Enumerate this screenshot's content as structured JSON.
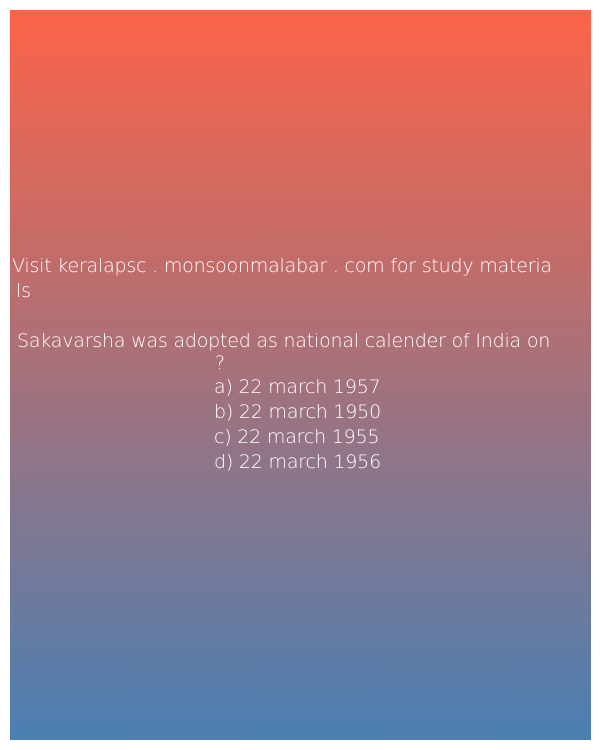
{
  "header": {
    "line1": "Visit keralapsc . monsoonmalabar . com for study materia",
    "line2": "ls"
  },
  "question": {
    "line1": "Sakavarsha was adopted as national calender of India on",
    "line2": "?"
  },
  "options": [
    "a) 22 march 1957",
    "b) 22 march 1950",
    "c) 22 march 1955",
    "d) 22 march 1956"
  ],
  "colors": {
    "gradient_top": "#fd634a",
    "gradient_bottom": "#4a7fb2",
    "text": "#ffffff"
  }
}
